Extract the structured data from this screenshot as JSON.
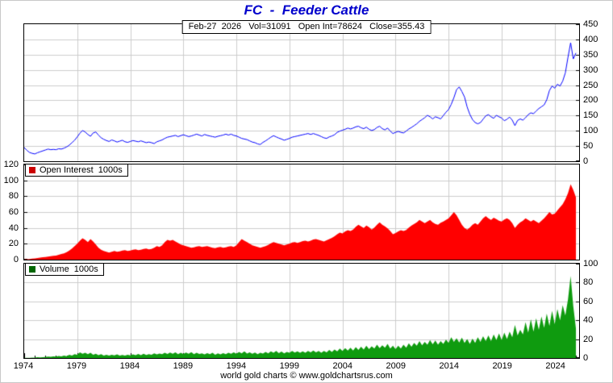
{
  "title": "FC  -  Feeder Cattle",
  "info_box": "Feb-27  2026   Vol=31091   Open Int=78624   Close=355.43",
  "footer": "world gold charts © www.goldchartsrus.com",
  "colors": {
    "title": "#0000cc",
    "price_line": "#0000ff",
    "oi_fill": "#ff0000",
    "oi_legend": "#cc0000",
    "vol_fill": "#0f9b0f",
    "vol_legend": "#006600",
    "grid": "#cccccc",
    "axis_text": "#000000"
  },
  "x_axis": {
    "start": 1974,
    "step": 0.25,
    "range": [
      1974,
      2026.3
    ],
    "grid_years": [
      1979,
      1984,
      1989,
      1994,
      1999,
      2004,
      2009,
      2014,
      2019,
      2024
    ],
    "tick_years": [
      1974,
      1979,
      1984,
      1989,
      1994,
      1999,
      2004,
      2009,
      2014,
      2019,
      2024
    ]
  },
  "chart_data": [
    {
      "id": "price",
      "type": "line",
      "series_name": "FC Feeder Cattle price",
      "color_key": "price_line",
      "axis_side": "right",
      "y_range": [
        0,
        450
      ],
      "y_ticks": [
        0,
        50,
        100,
        150,
        200,
        250,
        300,
        350,
        400,
        450
      ],
      "values": [
        45,
        36,
        29,
        26,
        24,
        28,
        31,
        34,
        37,
        40,
        38,
        39,
        38,
        41,
        40,
        43,
        47,
        53,
        61,
        69,
        80,
        92,
        101,
        96,
        88,
        82,
        93,
        96,
        86,
        77,
        72,
        68,
        65,
        70,
        67,
        63,
        66,
        69,
        64,
        62,
        65,
        68,
        66,
        64,
        67,
        64,
        61,
        63,
        61,
        58,
        64,
        67,
        70,
        75,
        79,
        81,
        83,
        85,
        81,
        84,
        87,
        84,
        81,
        83,
        86,
        89,
        86,
        83,
        88,
        85,
        83,
        81,
        79,
        82,
        84,
        86,
        89,
        86,
        89,
        85,
        83,
        79,
        75,
        73,
        71,
        67,
        63,
        61,
        57,
        55,
        62,
        67,
        73,
        79,
        84,
        80,
        76,
        73,
        69,
        72,
        75,
        79,
        81,
        83,
        85,
        87,
        89,
        91,
        88,
        91,
        88,
        85,
        81,
        77,
        75,
        80,
        83,
        87,
        95,
        99,
        102,
        105,
        109,
        106,
        109,
        113,
        115,
        110,
        107,
        112,
        105,
        101,
        104,
        111,
        115,
        107,
        103,
        109,
        99,
        91,
        95,
        98,
        95,
        93,
        99,
        106,
        111,
        117,
        123,
        131,
        137,
        143,
        151,
        146,
        139,
        146,
        143,
        139,
        150,
        161,
        170,
        187,
        209,
        235,
        244,
        229,
        211,
        178,
        154,
        137,
        127,
        123,
        127,
        138,
        149,
        153,
        146,
        141,
        151,
        146,
        142,
        133,
        138,
        145,
        135,
        117,
        134,
        139,
        135,
        143,
        153,
        159,
        156,
        165,
        173,
        179,
        185,
        202,
        232,
        247,
        240,
        253,
        247,
        263,
        290,
        341,
        389,
        336,
        355.4
      ]
    },
    {
      "id": "open_interest",
      "type": "area",
      "legend": "Open Interest  1000s",
      "color_key": "oi_fill",
      "axis_side": "left",
      "y_range": [
        0,
        120
      ],
      "y_ticks": [
        0,
        20,
        40,
        60,
        80,
        100,
        120
      ],
      "values": [
        0.3,
        0.5,
        0.8,
        1.2,
        1.6,
        2,
        2.5,
        3,
        3.4,
        3.9,
        4.4,
        4.8,
        5.2,
        6,
        7,
        8,
        9.5,
        11.5,
        14,
        17,
        20,
        24,
        27,
        25,
        22,
        26,
        23,
        19,
        15,
        12.5,
        11,
        10,
        9,
        10,
        11,
        10,
        10.5,
        11.5,
        12,
        11,
        11.5,
        12.5,
        13,
        12,
        12.5,
        13.5,
        14,
        13,
        13.5,
        15,
        17,
        16,
        18,
        22,
        25,
        24,
        25,
        23,
        21,
        19,
        18,
        17,
        16,
        15,
        15.5,
        16.5,
        17,
        16,
        16.5,
        17,
        16,
        15,
        14.5,
        15.5,
        16,
        15,
        15.5,
        16.5,
        17,
        16,
        18,
        22,
        26,
        24,
        22,
        20,
        18,
        17,
        16,
        15,
        16,
        17,
        18.5,
        20.5,
        22,
        21,
        20,
        19,
        18,
        19,
        20,
        21.5,
        22,
        21,
        22,
        23.5,
        24,
        23,
        24,
        25.5,
        26,
        25,
        24,
        23,
        24.5,
        26,
        27.5,
        29.5,
        32,
        34,
        33,
        35.5,
        37,
        36,
        38,
        41.5,
        44,
        42,
        40,
        43,
        41,
        38,
        40.5,
        44,
        47,
        44,
        42,
        39.5,
        36,
        32,
        33.5,
        35.5,
        37,
        36,
        37.5,
        40.5,
        43,
        45,
        47,
        50,
        48,
        46,
        48,
        50,
        47,
        45,
        44,
        46.5,
        48,
        50,
        52,
        56,
        60,
        56,
        50,
        44,
        40,
        38,
        40.5,
        44,
        46,
        44,
        48,
        52,
        55,
        52,
        50,
        53,
        51,
        49,
        48,
        50.5,
        52,
        50,
        46,
        40,
        44,
        47,
        49,
        52,
        50,
        48,
        50,
        48,
        46,
        49,
        52,
        56,
        60,
        57,
        58,
        62,
        66,
        70,
        76,
        84,
        95,
        88,
        78.6
      ]
    },
    {
      "id": "volume",
      "type": "area",
      "legend": "Volume  1000s",
      "color_key": "vol_fill",
      "axis_side": "right",
      "y_range": [
        0,
        100
      ],
      "y_ticks": [
        0,
        20,
        40,
        60,
        80,
        100
      ],
      "values": [
        0.2,
        0.3,
        0.3,
        0.4,
        0.5,
        0.8,
        0.6,
        0.9,
        1,
        1.5,
        1.2,
        1.8,
        1.5,
        2.2,
        1.8,
        2.5,
        2,
        3.5,
        2.5,
        4,
        3.5,
        6,
        4.5,
        5.5,
        4,
        5.5,
        3.5,
        4.5,
        3,
        4,
        2.5,
        3.5,
        2.5,
        3.5,
        2.8,
        3.8,
        2.5,
        3.2,
        2.6,
        3.4,
        2.8,
        3.8,
        3,
        4.2,
        3,
        4.5,
        3.2,
        4,
        3.5,
        5,
        3.8,
        4.8,
        4,
        5.5,
        4.2,
        5.8,
        4.5,
        6,
        4,
        5.5,
        4.2,
        5.8,
        4.5,
        6.2,
        4,
        5.5,
        4.2,
        5,
        3.8,
        5.2,
        4,
        5.5,
        3.5,
        5,
        3.8,
        5.2,
        4,
        5.5,
        4.5,
        6,
        4.5,
        6.5,
        5,
        7,
        4.8,
        6,
        4.5,
        5.8,
        4,
        5.5,
        4.8,
        6.5,
        5,
        7,
        5.5,
        7.5,
        5.2,
        6.8,
        5,
        6.5,
        5.5,
        7.5,
        5.8,
        7,
        5.5,
        7,
        5.5,
        7.5,
        6,
        8,
        6,
        7.5,
        5.5,
        7.5,
        6,
        8.5,
        6.5,
        9,
        7,
        10,
        7.5,
        10.5,
        8,
        11,
        8,
        11.5,
        8.5,
        12,
        9,
        13,
        9.5,
        12.5,
        10,
        14,
        10.5,
        13.5,
        11,
        15,
        10,
        13,
        9.5,
        13,
        10,
        14,
        11,
        15.5,
        12,
        16,
        13,
        18,
        13.5,
        17,
        14,
        19,
        14.5,
        18.5,
        14,
        18,
        15,
        19.5,
        16,
        22,
        17,
        21,
        16.5,
        21.5,
        16,
        20,
        15,
        20.5,
        16,
        22,
        17,
        23,
        18,
        24,
        18,
        25,
        19,
        26,
        19,
        27,
        20,
        28,
        22,
        35,
        24,
        30,
        25,
        38,
        27,
        41,
        28,
        42,
        30,
        44,
        32,
        47,
        34,
        50,
        36,
        52,
        40,
        56,
        45,
        62,
        87,
        55,
        31.1
      ]
    }
  ]
}
